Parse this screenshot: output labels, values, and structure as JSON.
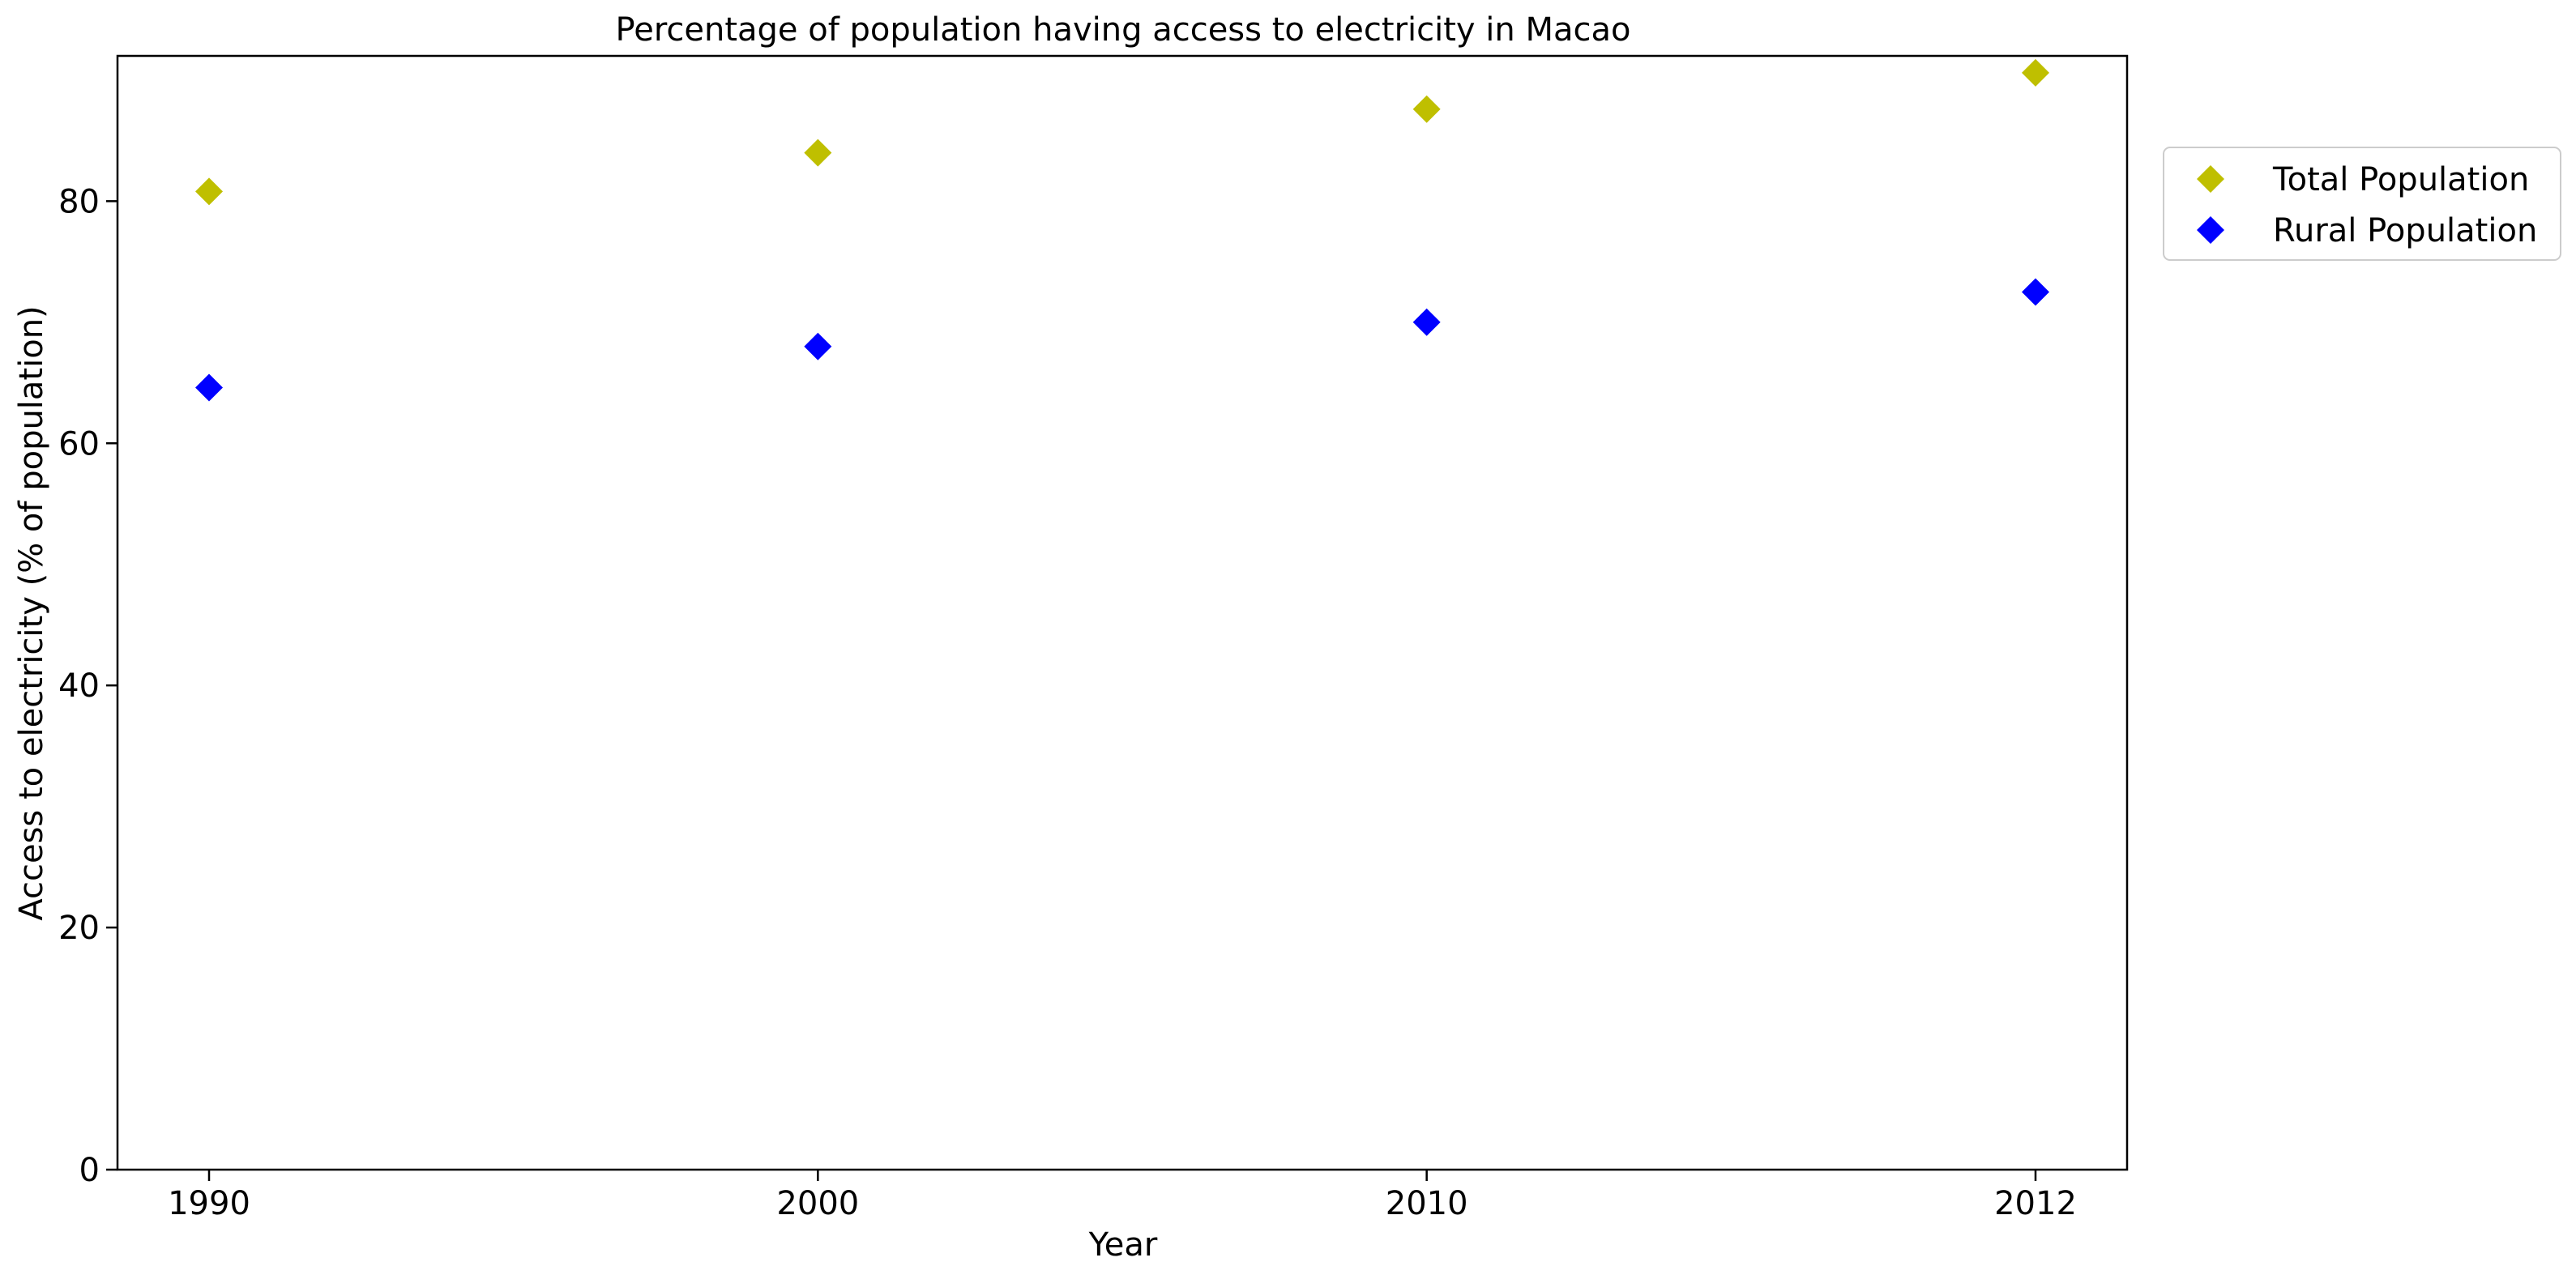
{
  "chart_data": {
    "type": "scatter",
    "title": "Percentage of population having access to electricity in Macao",
    "xlabel": "Year",
    "ylabel": "Access to electricity (% of population)",
    "categories": [
      "1990",
      "2000",
      "2010",
      "2012"
    ],
    "ylim": [
      0,
      92
    ],
    "yticks": [
      0,
      20,
      40,
      60,
      80
    ],
    "grid": false,
    "legend_position": "outside-top-right",
    "marker": "diamond",
    "series": [
      {
        "name": "Total Population",
        "color": "#bfbf00",
        "values": [
          80.8,
          84.0,
          87.6,
          90.6
        ]
      },
      {
        "name": "Rural Population",
        "color": "#0000ff",
        "values": [
          64.6,
          68.0,
          70.0,
          72.5
        ]
      }
    ]
  }
}
